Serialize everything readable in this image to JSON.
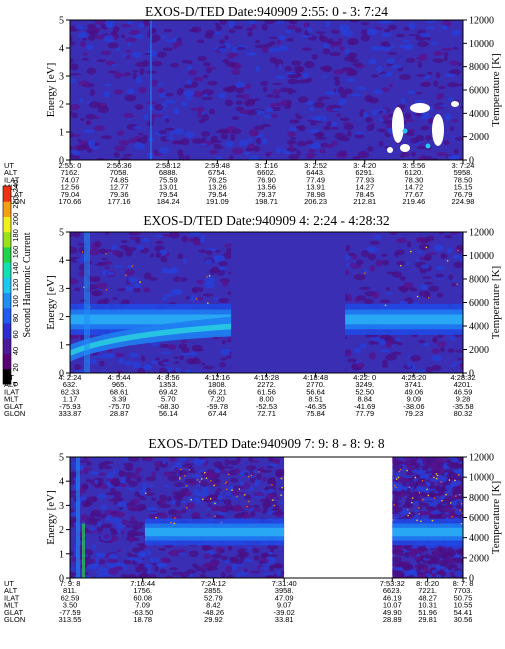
{
  "chart_data": {
    "type": "heatmap",
    "colorbar": {
      "ticks": [
        "0",
        "20",
        "40",
        "60",
        "80",
        "100",
        "120",
        "140",
        "160",
        "180",
        "200",
        "220",
        "240"
      ],
      "label": "Second Harmonic Current",
      "colors": [
        "#000000",
        "#5a0078",
        "#4b1a9a",
        "#2d2dd0",
        "#1f5cf0",
        "#1f8ff5",
        "#1fc8f0",
        "#12e0b4",
        "#22d44a",
        "#9ae11e",
        "#f0f01e",
        "#f5a014",
        "#f03214"
      ]
    },
    "panels": [
      {
        "title": "EXOS-D/TED   Date:940909  2:55: 0 - 3: 7:24",
        "ylabel_left": "Energy [eV]",
        "ylabel_right": "Temperature [K]",
        "yticks_left": [
          "0",
          "1",
          "2",
          "3",
          "4",
          "5"
        ],
        "yticks_right": [
          "0",
          "2000",
          "4000",
          "6000",
          "8000",
          "10000",
          "12000"
        ],
        "ylim": [
          0,
          5
        ],
        "ylim_right": [
          0,
          12000
        ],
        "eph_labels": [
          "UT",
          "ALT",
          "ILAT",
          "MLT",
          "GLAT",
          "GLON"
        ],
        "eph_cols": [
          [
            "2:55: 0",
            "7162.",
            "74.07",
            "12.56",
            "79.04",
            "170.66"
          ],
          [
            "2:56:36",
            "7058.",
            "74.85",
            "12.77",
            "79.36",
            "177.16"
          ],
          [
            "2:58:12",
            "6888.",
            "75.59",
            "13.01",
            "79.54",
            "184.24"
          ],
          [
            "2:59:48",
            "6754.",
            "76.25",
            "13.26",
            "79.54",
            "191.09"
          ],
          [
            "3: 1:16",
            "6602.",
            "76.90",
            "13.56",
            "79.37",
            "198.71"
          ],
          [
            "3: 2:52",
            "6443.",
            "77.49",
            "13.91",
            "78.98",
            "206.23"
          ],
          [
            "3: 4:20",
            "6291.",
            "77.93",
            "14.27",
            "78.45",
            "212.81"
          ],
          [
            "3: 5:56",
            "6120.",
            "78.30",
            "14.72",
            "77.67",
            "219.46"
          ],
          [
            "3: 7:24",
            "5958.",
            "78.50",
            "15.15",
            "76.79",
            "224.98"
          ]
        ],
        "segments": [
          [
            0,
            1,
            "quiet"
          ]
        ]
      },
      {
        "title": "EXOS-D/TED   Date:940909  4: 2:24 - 4:28:32",
        "ylabel_left": "Energy [eV]",
        "ylabel_right": "Temperature [K]",
        "yticks_left": [
          "0",
          "1",
          "2",
          "3",
          "4",
          "5"
        ],
        "yticks_right": [
          "0",
          "2000",
          "4000",
          "6000",
          "8000",
          "10000",
          "12000"
        ],
        "ylim": [
          0,
          5
        ],
        "ylim_right": [
          0,
          12000
        ],
        "eph_labels": [
          "UT",
          "ALT",
          "ILAT",
          "MLT",
          "GLAT",
          "GLON"
        ],
        "eph_cols": [
          [
            "4: 2:24",
            "632.",
            "62.33",
            "1.17",
            "-75.93",
            "333.87"
          ],
          [
            "4: 5:44",
            "965.",
            "68.61",
            "3.39",
            "-75.70",
            "28.87"
          ],
          [
            "4: 8:56",
            "1353.",
            "69.42",
            "5.70",
            "-68.30",
            "56.14"
          ],
          [
            "4:12:16",
            "1808.",
            "66.21",
            "7.20",
            "-59.78",
            "67.44"
          ],
          [
            "4:15:28",
            "2272.",
            "61.56",
            "8.00",
            "-52.53",
            "72.71"
          ],
          [
            "4:18:48",
            "2770.",
            "56.64",
            "8.51",
            "-46.35",
            "75.84"
          ],
          [
            "4:22: 0",
            "3249.",
            "52.50",
            "8.84",
            "-41.69",
            "77.79"
          ],
          [
            "4:25:20",
            "3741.",
            "49.06",
            "9.09",
            "-38.06",
            "79.23"
          ],
          [
            "4:28:32",
            "4201.",
            "46.59",
            "9.28",
            "-35.58",
            "80.32"
          ]
        ],
        "segments": [
          [
            0,
            1,
            "band"
          ]
        ]
      },
      {
        "title": "EXOS-D/TED   Date:940909  7: 9: 8 - 8: 9: 8",
        "ylabel_left": "Energy [eV]",
        "ylabel_right": "Temperature [K]",
        "yticks_left": [
          "0",
          "1",
          "2",
          "3",
          "4",
          "5"
        ],
        "yticks_right": [
          "0",
          "2000",
          "4000",
          "6000",
          "8000",
          "10000",
          "12000"
        ],
        "ylim": [
          0,
          5
        ],
        "ylim_right": [
          0,
          12000
        ],
        "eph_labels": [
          "UT",
          "ALT",
          "ILAT",
          "MLT",
          "GLAT",
          "GLON"
        ],
        "eph_cols": [
          [
            "7: 9: 8",
            "811.",
            "62.59",
            "3.50",
            "-77.59",
            "313.55"
          ],
          [
            "7:16:44",
            "1756.",
            "60.08",
            "7.09",
            "-63.50",
            "18.78"
          ],
          [
            "7:24:12",
            "2855.",
            "52.79",
            "8.42",
            "-48.26",
            "29.92"
          ],
          [
            "7:31:40",
            "3958.",
            "47.09",
            "9.07",
            "-39.02",
            "33.81"
          ],
          [
            "7:53:32",
            "6623.",
            "46.19",
            "10.07",
            "49.90",
            "28.89"
          ],
          [
            "8: 0:20",
            "7221.",
            "48.27",
            "10.31",
            "51.96",
            "29.81"
          ],
          [
            "8: 7: 8",
            "7703.",
            "50.75",
            "10.55",
            "54.41",
            "30.56"
          ]
        ],
        "segments": [
          [
            0,
            0.545,
            "band"
          ],
          [
            0.82,
            1,
            "band"
          ]
        ]
      }
    ]
  }
}
